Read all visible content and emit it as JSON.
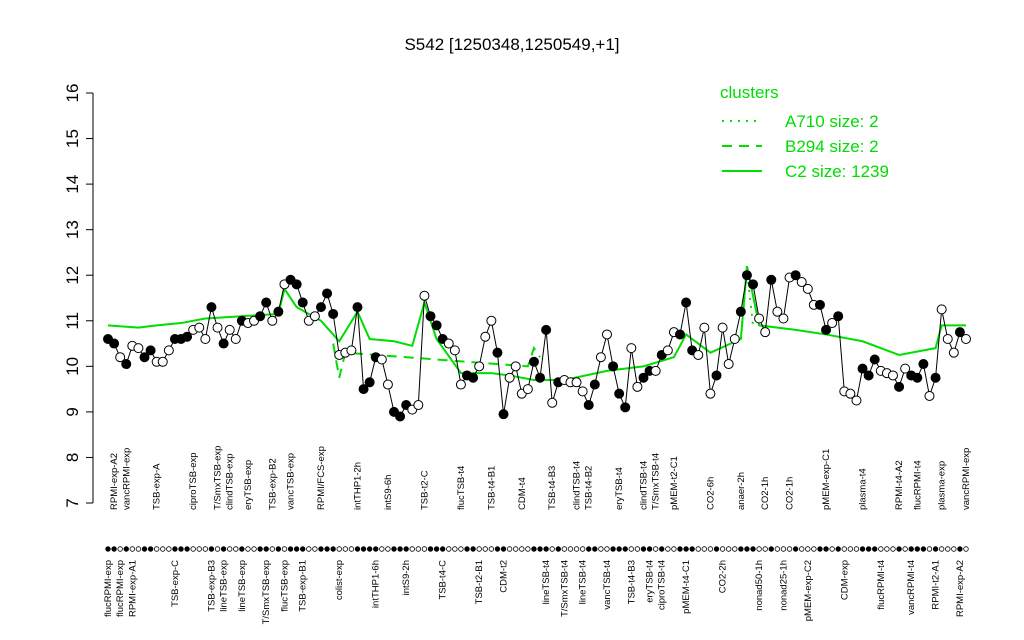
{
  "chart_data": {
    "type": "line",
    "title": "S542 [1250348,1250549,+1]",
    "ylim": [
      7,
      16
    ],
    "yticks": [
      7,
      8,
      9,
      10,
      11,
      12,
      13,
      14,
      15,
      16
    ],
    "legend_title": "clusters",
    "legend": "topright",
    "categories": [
      "flucRPMI-exp",
      "RPMI-exp-A2",
      "flucRPMI-exp",
      "vancRPMI-exp",
      "RPMI-exp-A1",
      null,
      null,
      null,
      "TSB-exp-A",
      null,
      null,
      "TSB-exp-C",
      null,
      null,
      "ciproTSB-exp",
      null,
      null,
      "TSB-exp-B3",
      "T/SmxTSB-exp",
      "lineTSB-exp",
      "clindTSB-exp",
      null,
      "lineTSB-exp",
      "eryTSB-exp",
      null,
      null,
      "T/SmxTSB-exp",
      "TSB-exp-B2",
      null,
      "flucTSB-exp",
      "vancTSB-exp",
      null,
      "TSB-exp-B1",
      null,
      null,
      "RPMI/FCS-exp",
      null,
      null,
      "colist-exp",
      null,
      null,
      "intTHP1-2h",
      null,
      null,
      "intTHP1-6h",
      null,
      "intS9-6h",
      null,
      null,
      "intS9-2h",
      null,
      null,
      "TSB-t2-C",
      null,
      null,
      "TSB-t4-C",
      null,
      null,
      "flucTSB-t4",
      null,
      null,
      "TSB-t2-B1",
      null,
      "TSB-t4-B1",
      null,
      "CDM-t2",
      null,
      null,
      "CDM-t4",
      null,
      null,
      null,
      "lineTSB-t4",
      "TSB-t4-B3",
      null,
      "T/SmxTSB-t4",
      null,
      "clindTSB-t4",
      "lineTSB-t4",
      "TSB-t4-B2",
      null,
      null,
      "vancTSB-t4",
      null,
      "eryTSB-t4",
      null,
      "TSB-t4-B3",
      null,
      "clindTSB-t4",
      "eryTSB-t4",
      "T/SmxTSB-t4",
      "ciproTSB-t4",
      null,
      "pMEM-t2-C1",
      null,
      "pMEM-t4-C1",
      null,
      null,
      null,
      "CO2-6h",
      null,
      "CO2-2h",
      null,
      null,
      "anaer-2h",
      null,
      null,
      "nonad50-1h",
      "CO2-1h",
      null,
      null,
      "nonad25-1h",
      "CO2-1h",
      null,
      null,
      "pMEM-exp-C2",
      null,
      null,
      "pMEM-exp-C1",
      null,
      null,
      "CDM-exp",
      null,
      null,
      "plasma-t4",
      null,
      null,
      "flucRPMI-t4",
      null,
      null,
      "RPMI-t4-A2",
      null,
      "vancRPMI-t4",
      "flucRPMI-t4",
      null,
      null,
      "RPMI-t2-A1",
      "plasma-exp",
      null,
      null,
      "RPMI-exp-A2",
      "vancRPMI-exp"
    ],
    "values": [
      10.6,
      10.5,
      10.2,
      10.05,
      10.45,
      10.4,
      10.2,
      10.35,
      10.1,
      10.1,
      10.35,
      10.6,
      10.6,
      10.65,
      10.8,
      10.85,
      10.6,
      11.3,
      10.85,
      10.5,
      10.8,
      10.6,
      11.0,
      10.95,
      11.0,
      11.1,
      11.4,
      11.0,
      11.2,
      11.8,
      11.9,
      11.8,
      11.4,
      11.0,
      11.1,
      11.3,
      11.6,
      11.15,
      10.25,
      10.3,
      10.35,
      11.3,
      9.5,
      9.65,
      10.2,
      10.15,
      9.6,
      9.0,
      8.9,
      9.15,
      9.05,
      9.15,
      11.55,
      11.1,
      10.9,
      10.6,
      10.5,
      10.35,
      9.6,
      9.8,
      9.75,
      10.0,
      10.65,
      11.0,
      10.3,
      8.95,
      9.75,
      10.0,
      9.4,
      9.5,
      10.1,
      9.75,
      10.8,
      9.2,
      9.65,
      9.7,
      9.65,
      9.65,
      9.45,
      9.15,
      9.6,
      10.2,
      10.7,
      10.0,
      9.4,
      9.1,
      10.4,
      9.55,
      9.75,
      9.9,
      9.9,
      10.25,
      10.35,
      10.75,
      10.7,
      11.4,
      10.35,
      10.25,
      10.85,
      9.4,
      9.8,
      10.85,
      10.05,
      10.6,
      11.2,
      12.0,
      11.8,
      11.05,
      10.75,
      11.9,
      11.2,
      11.05,
      11.95,
      12.0,
      11.85,
      11.7,
      11.35,
      11.35,
      10.8,
      10.95,
      11.1,
      9.45,
      9.4,
      9.25,
      9.95,
      9.8,
      10.15,
      9.9,
      9.85,
      9.8,
      9.55,
      9.95,
      9.8,
      9.75,
      10.05,
      9.35,
      9.75,
      11.25,
      10.6,
      10.3,
      10.75,
      10.6
    ],
    "markers": "ffofooffooofffooofofoofooffofofffoofffoooffffoofffooofffoooffoooffoooofffofooooffoofffooffofoofffooofooofffoofooofoooff fooofffooofofffofooofo",
    "series": [
      {
        "name": "A710 size: 2",
        "color": "#00dd00",
        "dash": "dotted",
        "x": [
          104,
          105,
          106
        ],
        "values": [
          10.6,
          12.1,
          10.9
        ]
      },
      {
        "name": "B294 size: 2",
        "color": "#00dd00",
        "dash": "dashed",
        "x": [
          37,
          38,
          39,
          69,
          70,
          71
        ],
        "values": [
          10.5,
          9.75,
          10.3,
          10.0,
          10.4,
          10.2
        ]
      },
      {
        "name": "C2 size: 1239",
        "color": "#00dd00",
        "dash": "solid",
        "x": [
          0,
          5,
          8,
          12,
          16,
          22,
          28,
          29,
          31,
          35,
          38,
          41,
          43,
          47,
          50,
          52,
          54,
          58,
          63,
          66,
          70,
          75,
          82,
          88,
          93,
          95,
          99,
          104,
          105,
          107,
          113,
          118,
          124,
          130,
          136,
          137,
          141
        ],
        "values": [
          10.9,
          10.85,
          10.9,
          10.95,
          11.05,
          11.1,
          11.15,
          11.7,
          11.3,
          11.0,
          10.55,
          11.2,
          10.6,
          10.55,
          10.45,
          11.4,
          10.6,
          9.85,
          9.85,
          9.8,
          9.7,
          9.7,
          9.9,
          10.0,
          10.2,
          10.7,
          10.3,
          10.6,
          12.2,
          10.9,
          10.8,
          10.7,
          10.55,
          10.25,
          10.4,
          10.9,
          10.9
        ]
      }
    ]
  }
}
